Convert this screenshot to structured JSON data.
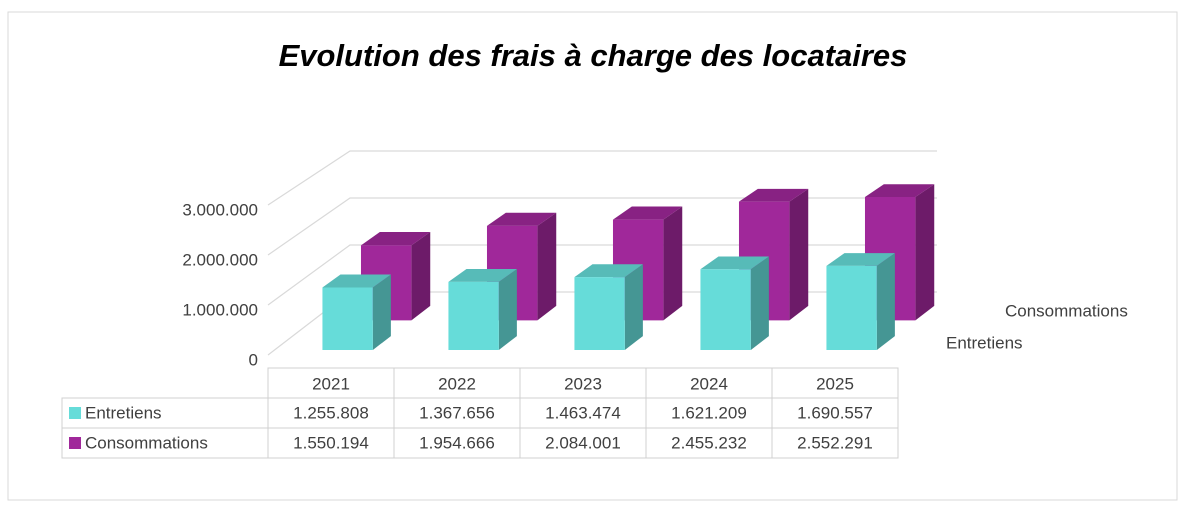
{
  "chart_data": {
    "type": "bar3d",
    "title": "Evolution des frais à charge des locataires",
    "categories": [
      "2021",
      "2022",
      "2023",
      "2024",
      "2025"
    ],
    "series": [
      {
        "name": "Entretiens",
        "color": "#66dcd9",
        "values": [
          1255808,
          1367656,
          1463474,
          1621209,
          1690557
        ],
        "value_labels": [
          "1.255.808",
          "1.367.656",
          "1.463.474",
          "1.621.209",
          "1.690.557"
        ]
      },
      {
        "name": "Consommations",
        "color": "#a0289a",
        "values": [
          1550194,
          1954666,
          2084001,
          2455232,
          2552291
        ],
        "value_labels": [
          "1.550.194",
          "1.954.666",
          "2.084.001",
          "2.455.232",
          "2.552.291"
        ]
      }
    ],
    "ylim": [
      0,
      3000000
    ],
    "yticks": [
      0,
      {
        "value": 1000000,
        "label": "1.000.000"
      },
      {
        "value": 2000000,
        "label": "2.000.000"
      },
      {
        "value": 3000000,
        "label": "3.000.000"
      }
    ],
    "grid": true,
    "data_table": true
  }
}
